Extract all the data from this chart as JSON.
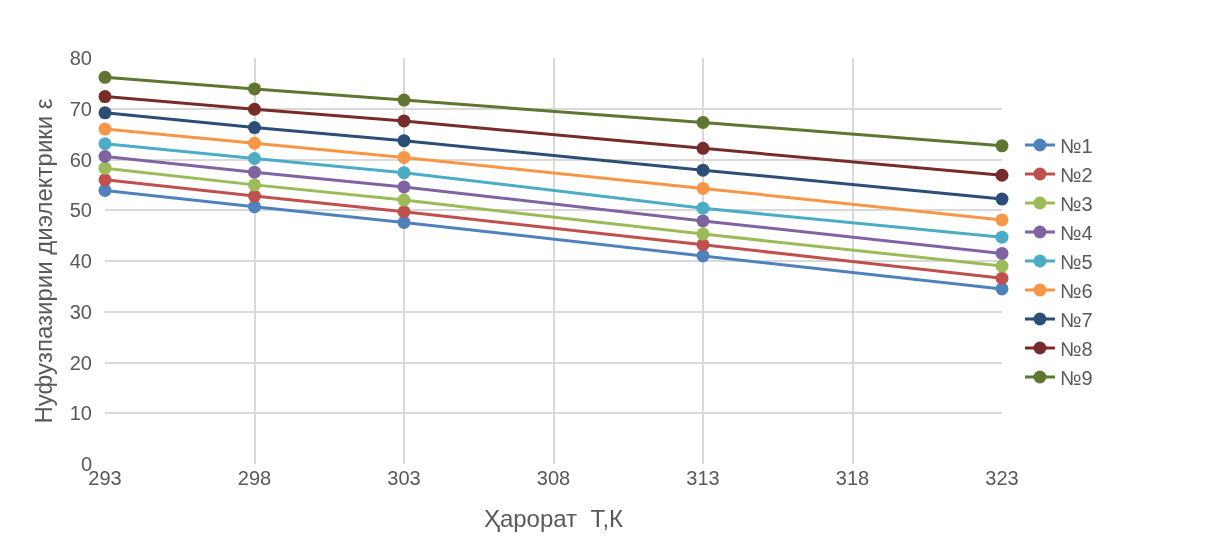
{
  "chart_data": {
    "type": "line",
    "xlabel": "Ҳарорат  Т,К",
    "ylabel": "Нуфузпазирии диэлектрики ε",
    "x": [
      293,
      298,
      303,
      313,
      323
    ],
    "series": [
      {
        "name": "№1",
        "color": "#4f81bd",
        "values": [
          53.9,
          50.7,
          47.6,
          41.0,
          34.5
        ]
      },
      {
        "name": "№2",
        "color": "#c0504d",
        "values": [
          56.0,
          52.8,
          49.7,
          43.2,
          36.6
        ]
      },
      {
        "name": "№3",
        "color": "#9bbb59",
        "values": [
          58.3,
          55.0,
          52.0,
          45.3,
          39.0
        ]
      },
      {
        "name": "№4",
        "color": "#8064a2",
        "values": [
          60.6,
          57.5,
          54.6,
          47.9,
          41.5
        ]
      },
      {
        "name": "№5",
        "color": "#4bacc6",
        "values": [
          63.1,
          60.2,
          57.4,
          50.4,
          44.7
        ]
      },
      {
        "name": "№6",
        "color": "#f79646",
        "values": [
          66.0,
          63.2,
          60.4,
          54.3,
          48.1
        ]
      },
      {
        "name": "№7",
        "color": "#2c4d75",
        "values": [
          69.2,
          66.3,
          63.7,
          57.9,
          52.2
        ]
      },
      {
        "name": "№8",
        "color": "#772c2a",
        "values": [
          72.4,
          69.9,
          67.6,
          62.2,
          56.9
        ]
      },
      {
        "name": "№9",
        "color": "#5f7530",
        "values": [
          76.2,
          73.9,
          71.7,
          67.3,
          62.7
        ]
      }
    ],
    "xlim": [
      293,
      323
    ],
    "xticks": [
      293,
      298,
      303,
      308,
      313,
      318,
      323
    ],
    "ylim": [
      0,
      80
    ],
    "yticks": [
      0,
      10,
      20,
      30,
      40,
      50,
      60,
      70,
      80
    ],
    "grid": true,
    "legend": "right",
    "marker": "circle",
    "line_style": "solid"
  }
}
